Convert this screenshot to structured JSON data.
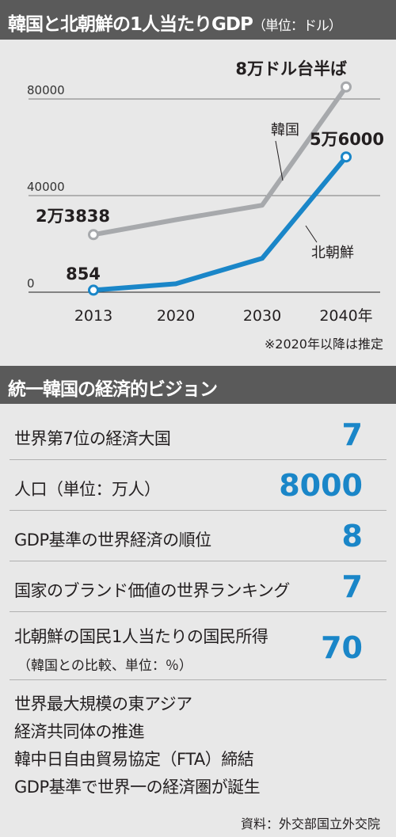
{
  "title": "韓国と北朝鮮の1人当たりGDP",
  "unit": "（単位：ドル）",
  "chart_data": {
    "type": "line",
    "x": [
      2013,
      2020,
      2030,
      2040
    ],
    "x_tick_labels": [
      "2013",
      "2020",
      "2030",
      "2040年"
    ],
    "ylim": [
      0,
      90000
    ],
    "y_ticks": [
      0,
      40000,
      80000
    ],
    "y_tick_labels": [
      "0",
      "40000",
      "80000"
    ],
    "grid": true,
    "series": [
      {
        "name": "韓国",
        "color": "#a7a9ac",
        "values": [
          23838,
          30000,
          36000,
          85000
        ],
        "start_label": "2万3838",
        "end_label": "8万ドル台半ば"
      },
      {
        "name": "北朝鮮",
        "color": "#1a86c8",
        "values": [
          854,
          3500,
          14000,
          56000
        ],
        "start_label": "854",
        "end_label": "5万6000"
      }
    ],
    "note": "※2020年以降は推定"
  },
  "vision": {
    "title": "統一韓国の経済的ビジョン",
    "items": [
      {
        "label": "世界第7位の経済大国",
        "value": "7"
      },
      {
        "label": "人口（単位：万人）",
        "value": "8000"
      },
      {
        "label": "GDP基準の世界経済の順位",
        "value": "8"
      },
      {
        "label": "国家のブランド価値の世界ランキング",
        "value": "7"
      },
      {
        "label": "北朝鮮の国民1人当たりの国民所得",
        "sublabel": "（韓国との比較、単位：％）",
        "value": "70"
      }
    ],
    "goals": [
      "世界最大規模の東アジア",
      "経済共同体の推進",
      "韓中日自由貿易協定（FTA）締結",
      "GDP基準で世界一の経済圏が誕生"
    ]
  },
  "source": "資料：外交部国立外交院"
}
